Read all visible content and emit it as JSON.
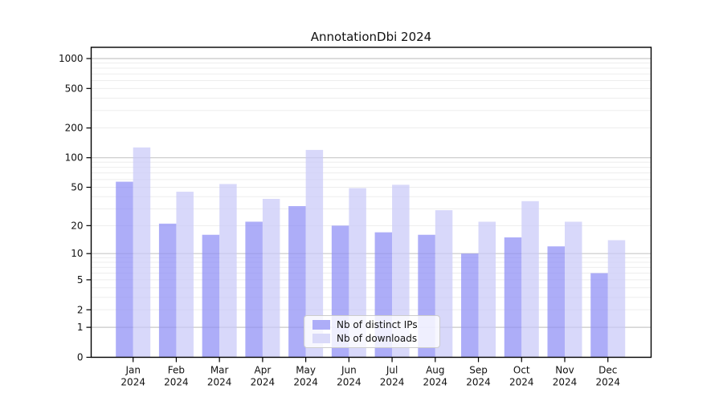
{
  "chart_data": {
    "type": "bar",
    "title": "AnnotationDbi 2024",
    "xlabel": "",
    "ylabel": "",
    "categories": [
      "Jan",
      "Feb",
      "Mar",
      "Apr",
      "May",
      "Jun",
      "Jul",
      "Aug",
      "Sep",
      "Oct",
      "Nov",
      "Dec"
    ],
    "x_year_label": "2024",
    "series": [
      {
        "name": "Nb of distinct IPs",
        "color": "rgba(141,141,245,0.72)",
        "swatch_color": "#adadf8",
        "values": [
          57,
          21,
          16,
          22,
          32,
          20,
          17,
          16,
          10,
          15,
          12,
          6
        ]
      },
      {
        "name": "Nb of downloads",
        "color": "rgba(199,199,248,0.70)",
        "swatch_color": "#dadaf9",
        "values": [
          127,
          45,
          54,
          38,
          120,
          49,
          53,
          29,
          22,
          36,
          22,
          14
        ]
      }
    ],
    "y_scale": "log1p",
    "ylim": [
      0,
      1000
    ],
    "y_ticks": [
      0,
      1,
      2,
      5,
      10,
      20,
      50,
      100,
      200,
      500,
      1000
    ],
    "major_grid_values": [
      1,
      10,
      100,
      1000
    ],
    "minor_grid_values": [
      2,
      3,
      4,
      5,
      6,
      7,
      8,
      9,
      20,
      30,
      40,
      50,
      60,
      70,
      80,
      90,
      200,
      300,
      400,
      500,
      600,
      700,
      800,
      900
    ],
    "grid": true,
    "legend_position": "bottom-center",
    "colors": {
      "major_grid": "#c8c8c8",
      "minor_grid": "#ededed",
      "axis": "#000000",
      "text": "#111111"
    }
  }
}
